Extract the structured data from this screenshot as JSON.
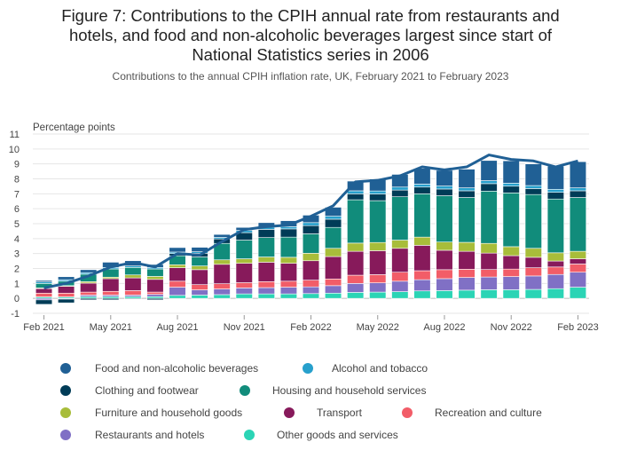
{
  "title_lines": [
    "Figure 7: Contributions to the CPIH annual rate from restaurants and",
    "hotels, and food and non-alcoholic beverages largest since start of",
    "National Statistics series in 2006"
  ],
  "subtitle": "Contributions to the annual CPIH inflation rate, UK, February 2021 to February 2023",
  "chart_data": {
    "type": "bar",
    "stacked": true,
    "with_line": true,
    "title": "Figure 7: Contributions to the CPIH annual rate from restaurants and hotels, and food and non-alcoholic beverages largest since start of National Statistics series in 2006",
    "subtitle": "Contributions to the annual CPIH inflation rate, UK, February 2021 to February 2023",
    "ylabel": "Percentage points",
    "ylim": [
      -1,
      11
    ],
    "yticks": [
      -1,
      0,
      1,
      2,
      3,
      4,
      5,
      6,
      7,
      8,
      9,
      10,
      11
    ],
    "grid": true,
    "legend_position": "bottom",
    "categories": [
      "Feb 2021",
      "Mar 2021",
      "Apr 2021",
      "May 2021",
      "Jun 2021",
      "Jul 2021",
      "Aug 2021",
      "Sep 2021",
      "Oct 2021",
      "Nov 2021",
      "Dec 2021",
      "Jan 2022",
      "Feb 2022",
      "Mar 2022",
      "Apr 2022",
      "May 2022",
      "Jun 2022",
      "Jul 2022",
      "Aug 2022",
      "Sep 2022",
      "Oct 2022",
      "Nov 2022",
      "Dec 2022",
      "Jan 2023",
      "Feb 2023"
    ],
    "xtick_labels": [
      "Feb 2021",
      "",
      "",
      "May 2021",
      "",
      "",
      "Aug 2021",
      "",
      "",
      "Nov 2021",
      "",
      "",
      "Feb 2022",
      "",
      "",
      "May 2022",
      "",
      "",
      "Aug 2022",
      "",
      "",
      "Nov 2022",
      "",
      "",
      "Feb 2023"
    ],
    "series": [
      {
        "name": "Other goods and services",
        "color": "#2bd4b5",
        "values": [
          0.1,
          0.1,
          0.12,
          0.12,
          0.12,
          0.12,
          0.2,
          0.22,
          0.25,
          0.3,
          0.3,
          0.3,
          0.32,
          0.35,
          0.4,
          0.42,
          0.45,
          0.5,
          0.52,
          0.55,
          0.58,
          0.58,
          0.6,
          0.65,
          0.75
        ]
      },
      {
        "name": "Restaurants and hotels",
        "color": "#8070c5",
        "values": [
          -0.1,
          -0.05,
          0.1,
          0.1,
          0.1,
          0.15,
          0.55,
          0.35,
          0.38,
          0.4,
          0.42,
          0.45,
          0.45,
          0.5,
          0.6,
          0.62,
          0.7,
          0.75,
          0.8,
          0.85,
          0.85,
          0.88,
          0.9,
          0.95,
          1.0
        ]
      },
      {
        "name": "Recreation and culture",
        "color": "#f25d68",
        "values": [
          0.25,
          0.25,
          0.2,
          0.25,
          0.3,
          0.15,
          0.4,
          0.35,
          0.35,
          0.35,
          0.4,
          0.4,
          0.45,
          0.45,
          0.55,
          0.55,
          0.6,
          0.6,
          0.6,
          0.55,
          0.5,
          0.5,
          0.55,
          0.5,
          0.55
        ]
      },
      {
        "name": "Transport",
        "color": "#871a5b",
        "values": [
          0.3,
          0.45,
          0.6,
          0.85,
          0.85,
          0.85,
          0.9,
          1.0,
          1.3,
          1.3,
          1.3,
          1.2,
          1.3,
          1.5,
          1.6,
          1.6,
          1.6,
          1.7,
          1.3,
          1.2,
          1.1,
          0.9,
          0.7,
          0.4,
          0.35
        ]
      },
      {
        "name": "Furniture and household goods",
        "color": "#a8bd3a",
        "values": [
          0.05,
          0.05,
          0.1,
          0.1,
          0.2,
          0.2,
          0.2,
          0.25,
          0.3,
          0.3,
          0.35,
          0.4,
          0.5,
          0.55,
          0.55,
          0.55,
          0.55,
          0.55,
          0.55,
          0.6,
          0.65,
          0.6,
          0.6,
          0.55,
          0.5
        ]
      },
      {
        "name": "Housing and household services",
        "color": "#118c7b",
        "values": [
          0.3,
          0.3,
          0.5,
          0.55,
          0.5,
          0.5,
          0.6,
          0.6,
          1.1,
          1.25,
          1.3,
          1.35,
          1.3,
          1.4,
          2.9,
          2.8,
          2.9,
          2.9,
          3.1,
          3.0,
          3.5,
          3.6,
          3.6,
          3.6,
          3.6
        ]
      },
      {
        "name": "Clothing and footwear",
        "color": "#003c57",
        "values": [
          -0.3,
          -0.25,
          -0.1,
          -0.1,
          -0.05,
          -0.1,
          0.15,
          0.25,
          0.3,
          0.5,
          0.55,
          0.55,
          0.55,
          0.55,
          0.4,
          0.45,
          0.45,
          0.45,
          0.45,
          0.45,
          0.5,
          0.45,
          0.4,
          0.45,
          0.45
        ]
      },
      {
        "name": "Alcohol and tobacco",
        "color": "#27a0cc",
        "values": [
          0.1,
          0.1,
          0.1,
          0.1,
          0.1,
          0.1,
          0.1,
          0.1,
          0.1,
          0.15,
          0.15,
          0.15,
          0.2,
          0.2,
          0.2,
          0.2,
          0.2,
          0.2,
          0.2,
          0.2,
          0.2,
          0.2,
          0.2,
          0.2,
          0.2
        ]
      },
      {
        "name": "Food and non-alcoholic beverages",
        "color": "#206095",
        "values": [
          0.1,
          0.2,
          0.2,
          0.35,
          0.35,
          0.2,
          0.3,
          0.3,
          0.2,
          0.2,
          0.3,
          0.4,
          0.5,
          0.6,
          0.65,
          0.8,
          0.85,
          1.05,
          1.05,
          1.25,
          1.35,
          1.5,
          1.45,
          1.55,
          1.75
        ]
      }
    ],
    "line": {
      "name": "CPIH annual rate",
      "color": "#206095",
      "values": [
        0.7,
        1.0,
        1.5,
        2.1,
        2.4,
        2.1,
        3.0,
        2.9,
        3.8,
        4.6,
        4.8,
        4.9,
        5.5,
        6.2,
        7.8,
        7.9,
        8.2,
        8.8,
        8.6,
        8.8,
        9.6,
        9.3,
        9.2,
        8.8,
        9.2
      ]
    }
  },
  "legend": [
    {
      "label": "Food and non-alcoholic beverages",
      "color": "#206095"
    },
    {
      "label": "Alcohol and tobacco",
      "color": "#27a0cc"
    },
    {
      "label": "Clothing and footwear",
      "color": "#003c57"
    },
    {
      "label": "Housing and household services",
      "color": "#118c7b"
    },
    {
      "label": "Furniture and household goods",
      "color": "#a8bd3a"
    },
    {
      "label": "Transport",
      "color": "#871a5b"
    },
    {
      "label": "Recreation and culture",
      "color": "#f25d68"
    },
    {
      "label": "Restaurants and hotels",
      "color": "#8070c5"
    },
    {
      "label": "Other goods and services",
      "color": "#2bd4b5"
    }
  ]
}
